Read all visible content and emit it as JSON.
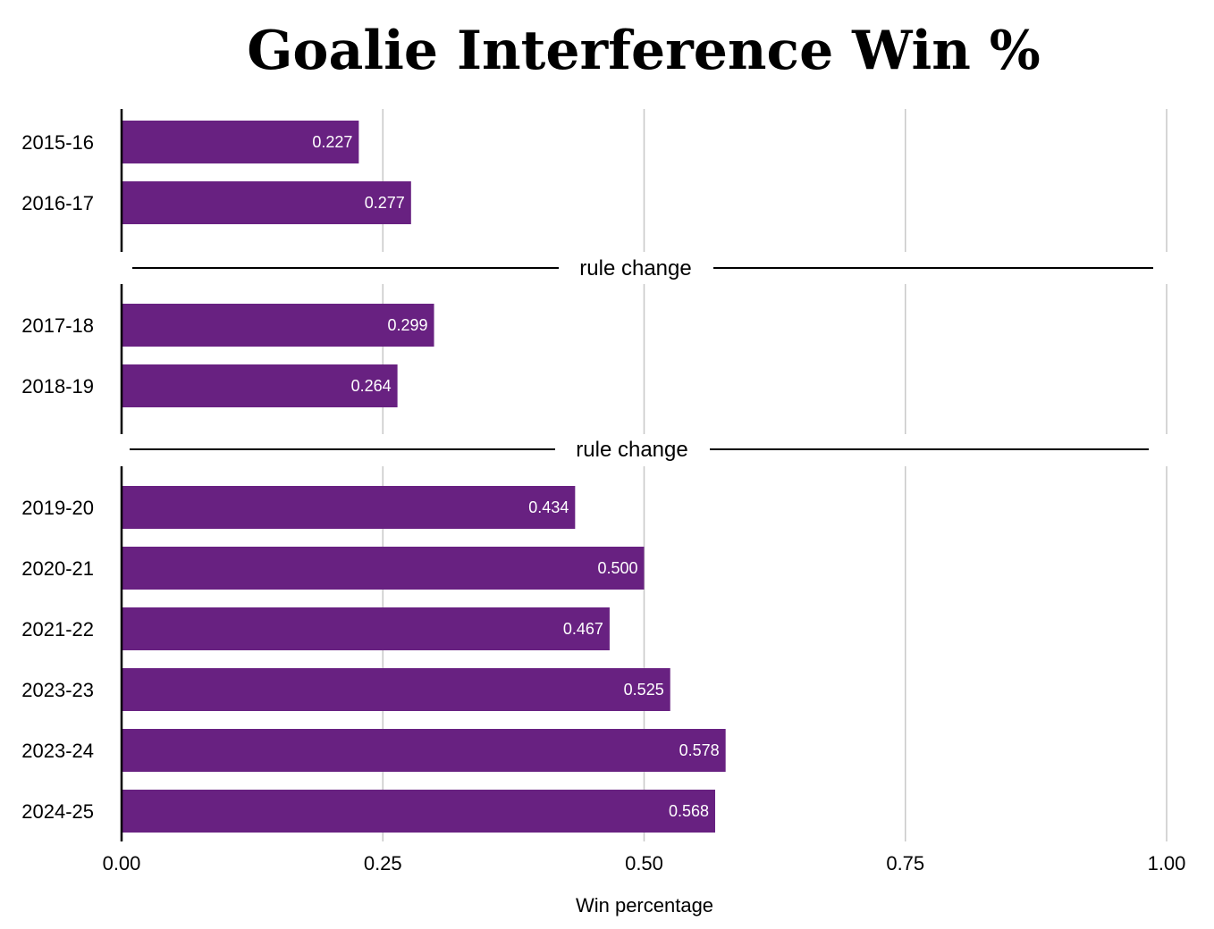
{
  "chart_data": {
    "type": "bar",
    "orientation": "horizontal",
    "title": "Goalie Interference Win %",
    "xlabel": "Win percentage",
    "ylabel": "",
    "xlim": [
      0,
      1
    ],
    "xticks": [
      "0.00",
      "0.25",
      "0.50",
      "0.75",
      "1.00"
    ],
    "xtick_values": [
      0,
      0.25,
      0.5,
      0.75,
      1.0
    ],
    "grid": true,
    "bar_color": "#682181",
    "label_color": "#ffffff",
    "panels": [
      {
        "categories": [
          "2015-16",
          "2016-17"
        ],
        "values": [
          0.227,
          0.277
        ],
        "labels": [
          "0.227",
          "0.277"
        ]
      },
      {
        "categories": [
          "2017-18",
          "2018-19"
        ],
        "values": [
          0.299,
          0.264
        ],
        "labels": [
          "0.299",
          "0.264"
        ]
      },
      {
        "categories": [
          "2019-20",
          "2020-21",
          "2021-22",
          "2023-23",
          "2023-24",
          "2024-25"
        ],
        "values": [
          0.434,
          0.5,
          0.467,
          0.525,
          0.578,
          0.568
        ],
        "labels": [
          "0.434",
          "0.500",
          "0.467",
          "0.525",
          "0.578",
          "0.568"
        ]
      }
    ],
    "dividers": [
      "rule change",
      "rule change"
    ]
  }
}
